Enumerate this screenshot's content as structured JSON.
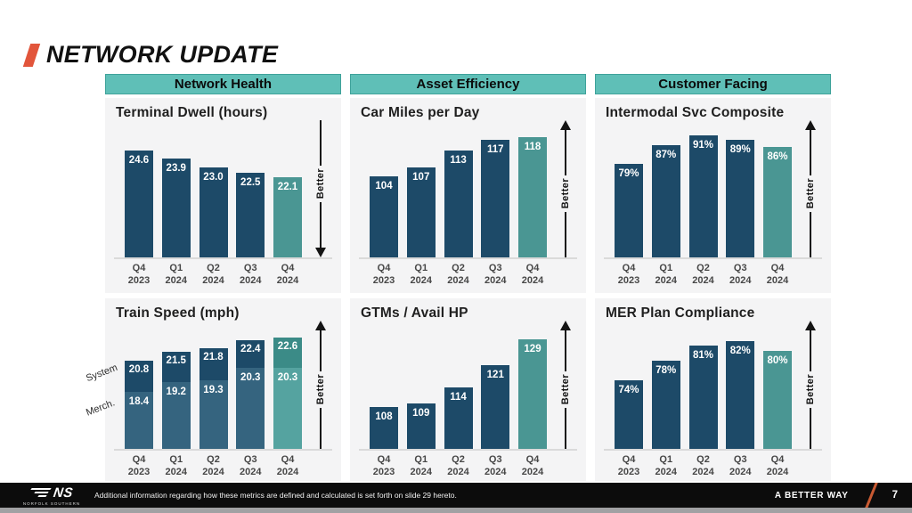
{
  "slide": {
    "title": "NETWORK UPDATE",
    "footer": {
      "note": "Additional information regarding how these metrics are defined and calculated is set forth on slide 29 hereto.",
      "tagline": "A BETTER WAY",
      "page_number": "7",
      "logo_text": "NS",
      "logo_subtext": "NORFOLK SOUTHERN"
    },
    "colors": {
      "accent_orange": "#E2553B",
      "header_teal": "#5FBFB7",
      "bar_navy": "#1D4A68",
      "bar_navy_light": "#35647F",
      "bar_teal": "#4A9693",
      "bar_teal_dark": "#3B8B87",
      "bar_teal_light": "#55A3A0",
      "panel_bg": "#F4F4F5",
      "footer_bg": "#0C0C0C"
    }
  },
  "columns": [
    {
      "header": "Network Health"
    },
    {
      "header": "Asset Efficiency"
    },
    {
      "header": "Customer Facing"
    }
  ],
  "chart_data": [
    {
      "title": "Terminal Dwell (hours)",
      "type": "bar",
      "column": "Network Health",
      "categories": [
        [
          "Q4",
          "2023"
        ],
        [
          "Q1",
          "2024"
        ],
        [
          "Q2",
          "2024"
        ],
        [
          "Q3",
          "2024"
        ],
        [
          "Q4",
          "2024"
        ]
      ],
      "values": [
        24.6,
        23.9,
        23.0,
        22.5,
        22.1
      ],
      "labels": [
        "24.6",
        "23.9",
        "23.0",
        "22.5",
        "22.1"
      ],
      "better_direction": "down",
      "better_label": "Better",
      "ylim": [
        14.5,
        27
      ],
      "grid": false,
      "highlight_last": true
    },
    {
      "title": "Car Miles per Day",
      "type": "bar",
      "column": "Asset Efficiency",
      "categories": [
        [
          "Q4",
          "2023"
        ],
        [
          "Q1",
          "2024"
        ],
        [
          "Q2",
          "2024"
        ],
        [
          "Q3",
          "2024"
        ],
        [
          "Q4",
          "2024"
        ]
      ],
      "values": [
        104,
        107,
        113,
        117,
        118
      ],
      "labels": [
        "104",
        "107",
        "113",
        "117",
        "118"
      ],
      "better_direction": "up",
      "better_label": "Better",
      "ylim": [
        75,
        122
      ],
      "grid": false,
      "highlight_last": true
    },
    {
      "title": "Intermodal Svc Composite",
      "type": "bar",
      "column": "Customer Facing",
      "categories": [
        [
          "Q4",
          "2023"
        ],
        [
          "Q1",
          "2024"
        ],
        [
          "Q2",
          "2024"
        ],
        [
          "Q3",
          "2024"
        ],
        [
          "Q4",
          "2024"
        ]
      ],
      "values": [
        79,
        87,
        91,
        89,
        86
      ],
      "labels": [
        "79%",
        "87%",
        "91%",
        "89%",
        "86%"
      ],
      "better_direction": "up",
      "better_label": "Better",
      "ylim": [
        40,
        95
      ],
      "grid": false,
      "highlight_last": true
    },
    {
      "title": "Train Speed (mph)",
      "type": "stacked-bar",
      "column": "Network Health",
      "categories": [
        [
          "Q4",
          "2023"
        ],
        [
          "Q1",
          "2024"
        ],
        [
          "Q2",
          "2024"
        ],
        [
          "Q3",
          "2024"
        ],
        [
          "Q4",
          "2024"
        ]
      ],
      "series": [
        {
          "name": "System",
          "values": [
            20.8,
            21.5,
            21.8,
            22.4,
            22.6
          ],
          "labels": [
            "20.8",
            "21.5",
            "21.8",
            "22.4",
            "22.6"
          ]
        },
        {
          "name": "Merch.",
          "values": [
            18.4,
            19.2,
            19.3,
            20.3,
            20.3
          ],
          "labels": [
            "18.4",
            "19.2",
            "19.3",
            "20.3",
            "20.3"
          ]
        }
      ],
      "better_direction": "up",
      "better_label": "Better",
      "ylim": [
        14,
        23.5
      ],
      "grid": false,
      "highlight_last": true
    },
    {
      "title": "GTMs / Avail HP",
      "type": "bar",
      "column": "Asset Efficiency",
      "categories": [
        [
          "Q4",
          "2023"
        ],
        [
          "Q1",
          "2024"
        ],
        [
          "Q2",
          "2024"
        ],
        [
          "Q3",
          "2024"
        ],
        [
          "Q4",
          "2024"
        ]
      ],
      "values": [
        108,
        109,
        114,
        121,
        129
      ],
      "labels": [
        "108",
        "109",
        "114",
        "121",
        "129"
      ],
      "better_direction": "up",
      "better_label": "Better",
      "ylim": [
        95,
        133
      ],
      "grid": false,
      "highlight_last": true
    },
    {
      "title": "MER Plan Compliance",
      "type": "bar",
      "column": "Customer Facing",
      "categories": [
        [
          "Q4",
          "2023"
        ],
        [
          "Q1",
          "2024"
        ],
        [
          "Q2",
          "2024"
        ],
        [
          "Q3",
          "2024"
        ],
        [
          "Q4",
          "2024"
        ]
      ],
      "values": [
        74,
        78,
        81,
        82,
        80
      ],
      "labels": [
        "74%",
        "78%",
        "81%",
        "82%",
        "80%"
      ],
      "better_direction": "up",
      "better_label": "Better",
      "ylim": [
        60,
        85
      ],
      "grid": false,
      "highlight_last": true
    }
  ]
}
